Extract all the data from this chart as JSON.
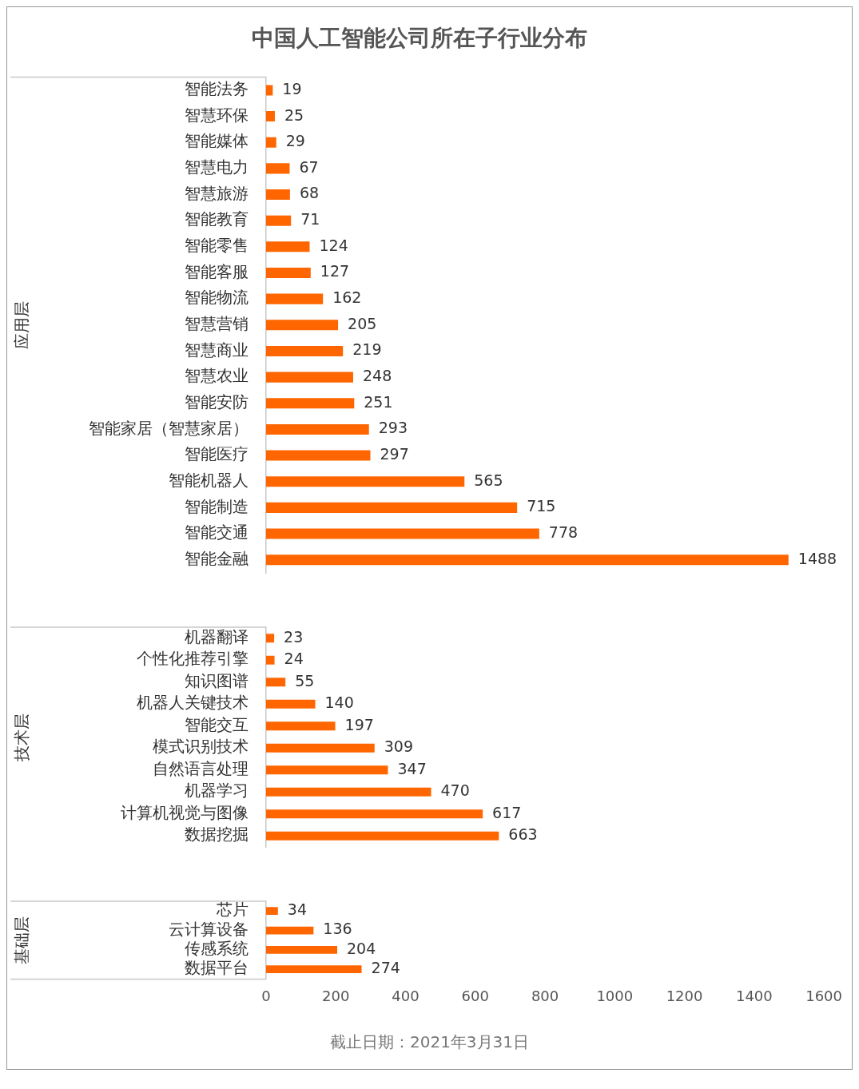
{
  "chart_data": [
    {
      "type": "bar",
      "orientation": "horizontal",
      "title": "中国人工智能公司所在子行业分布",
      "ylabel": "应用层",
      "tick_labels": "y",
      "categories": [
        "智能法务",
        "智慧环保",
        "智能媒体",
        "智慧电力",
        "智慧旅游",
        "智能教育",
        "智能零售",
        "智能客服",
        "智能物流",
        "智慧营销",
        "智慧商业",
        "智慧农业",
        "智能安防",
        "智能家居（智慧家居）",
        "智能医疗",
        "智能机器人",
        "智能制造",
        "智能交通",
        "智能金融"
      ],
      "values": [
        19,
        25,
        29,
        67,
        68,
        71,
        124,
        127,
        162,
        205,
        219,
        248,
        251,
        293,
        297,
        565,
        715,
        778,
        1488
      ],
      "color": "#ff6600",
      "xlim": [
        0,
        1600
      ],
      "xticks": [
        0,
        200,
        400,
        600,
        800,
        1000,
        1200,
        1400,
        1600
      ],
      "data_labels": true
    },
    {
      "type": "bar",
      "orientation": "horizontal",
      "ylabel": "技术层",
      "tick_labels": "y",
      "categories": [
        "机器翻译",
        "个性化推荐引擎",
        "知识图谱",
        "机器人关键技术",
        "智能交互",
        "模式识别技术",
        "自然语言处理",
        "机器学习",
        "计算机视觉与图像",
        "数据挖掘"
      ],
      "values": [
        23,
        24,
        55,
        140,
        197,
        309,
        347,
        470,
        617,
        663
      ],
      "color": "#ff6600",
      "xlim": [
        0,
        1600
      ],
      "xticks": [
        0,
        200,
        400,
        600,
        800,
        1000,
        1200,
        1400,
        1600
      ],
      "data_labels": true
    },
    {
      "type": "bar",
      "orientation": "horizontal",
      "ylabel": "基础层",
      "categories": [
        "芯片",
        "云计算设备",
        "传感系统",
        "数据平台"
      ],
      "values": [
        34,
        136,
        204,
        274
      ],
      "color": "#ff6600",
      "xlim": [
        0,
        1600
      ],
      "xticks": [
        0,
        200,
        400,
        600,
        800,
        1000,
        1200,
        1400,
        1600
      ],
      "data_labels": true,
      "annotations": [
        "截止日期：2021年3月31日"
      ]
    }
  ]
}
